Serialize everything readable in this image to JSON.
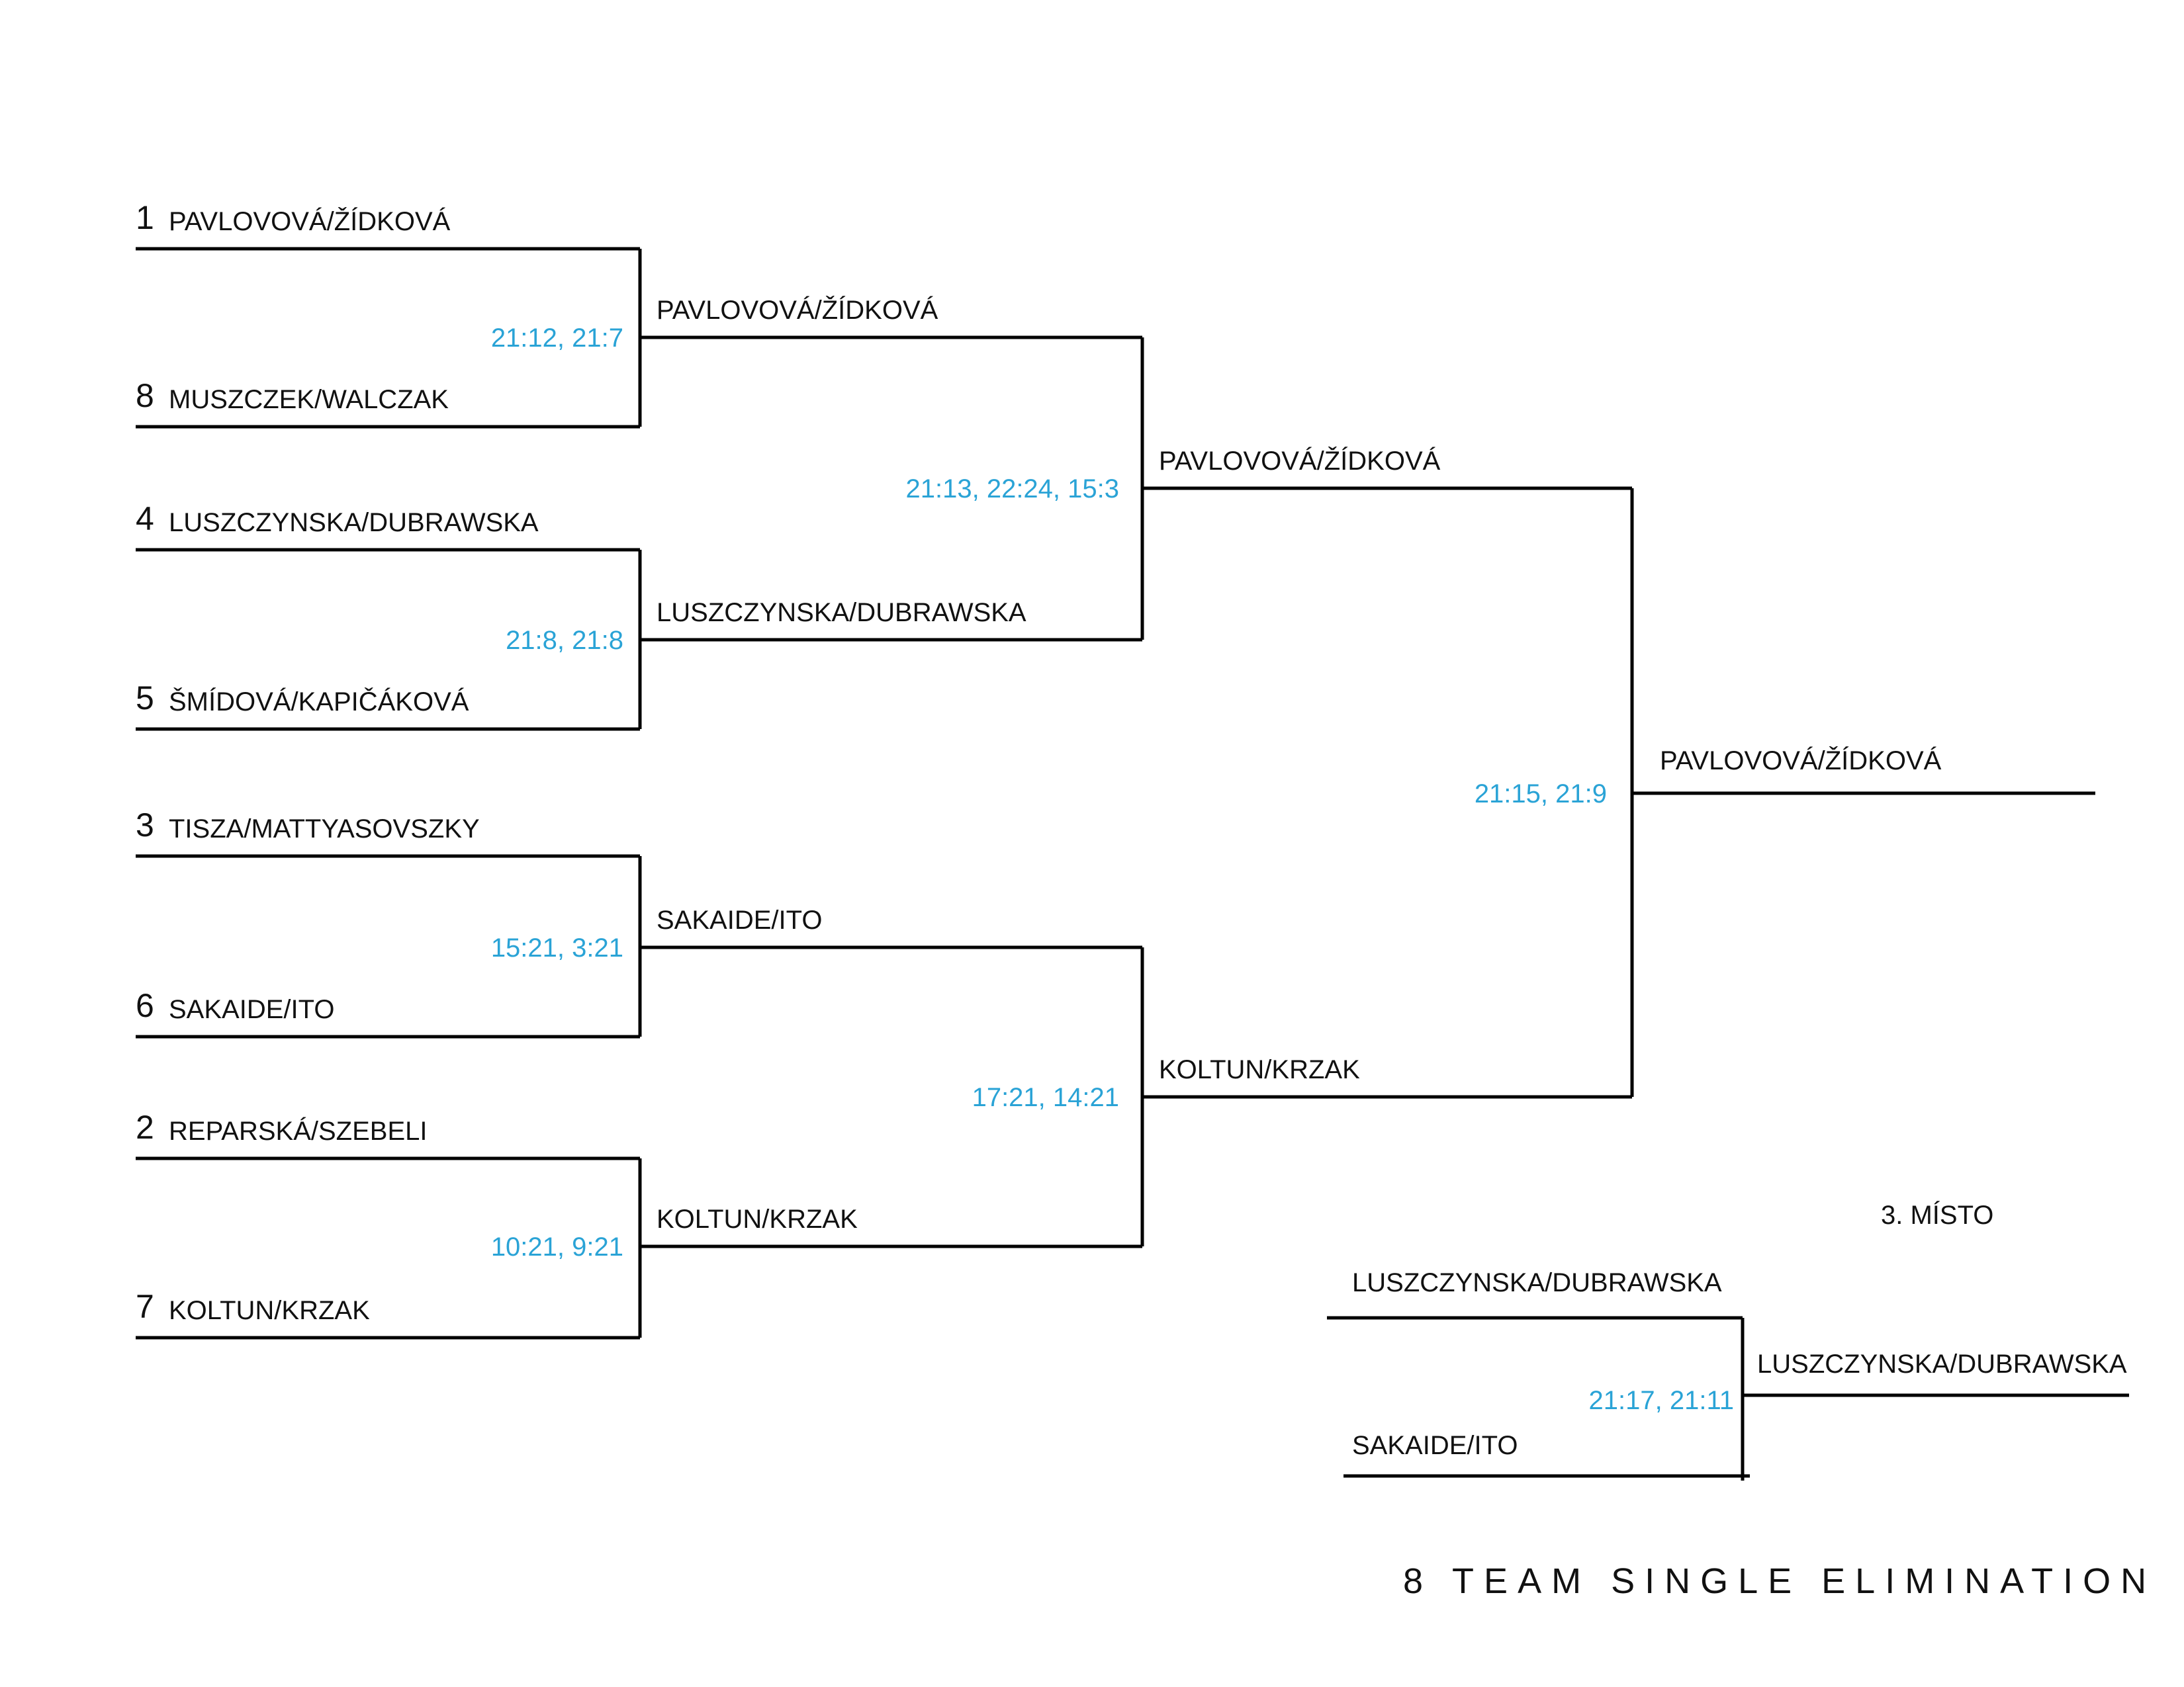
{
  "title": "8 TEAM SINGLE ELIMINATION",
  "score_color": "#2aa3d6",
  "round1": [
    {
      "seed": "1",
      "name": "PAVLOVOVÁ/ŽÍDKOVÁ"
    },
    {
      "seed": "8",
      "name": "MUSZCZEK/WALCZAK"
    },
    {
      "seed": "4",
      "name": "LUSZCZYNSKA/DUBRAWSKA"
    },
    {
      "seed": "5",
      "name": "ŠMÍDOVÁ/KAPIČÁKOVÁ"
    },
    {
      "seed": "3",
      "name": "TISZA/MATTYASOVSZKY"
    },
    {
      "seed": "6",
      "name": "SAKAIDE/ITO"
    },
    {
      "seed": "2",
      "name": "REPARSKÁ/SZEBELI"
    },
    {
      "seed": "7",
      "name": "KOLTUN/KRZAK"
    }
  ],
  "round1_scores": [
    "21:12, 21:7",
    "21:8, 21:8",
    "15:21, 3:21",
    "10:21, 9:21"
  ],
  "round2": [
    "PAVLOVOVÁ/ŽÍDKOVÁ",
    "LUSZCZYNSKA/DUBRAWSKA",
    "SAKAIDE/ITO",
    "KOLTUN/KRZAK"
  ],
  "round2_scores": [
    "21:13, 22:24, 15:3",
    "17:21, 14:21"
  ],
  "round3": [
    "PAVLOVOVÁ/ŽÍDKOVÁ",
    "KOLTUN/KRZAK"
  ],
  "final_score": "21:15, 21:9",
  "champion": "PAVLOVOVÁ/ŽÍDKOVÁ",
  "third_place": {
    "label": "3. MÍSTO",
    "teams": [
      "LUSZCZYNSKA/DUBRAWSKA",
      "SAKAIDE/ITO"
    ],
    "score": "21:17, 21:11",
    "winner": "LUSZCZYNSKA/DUBRAWSKA"
  }
}
